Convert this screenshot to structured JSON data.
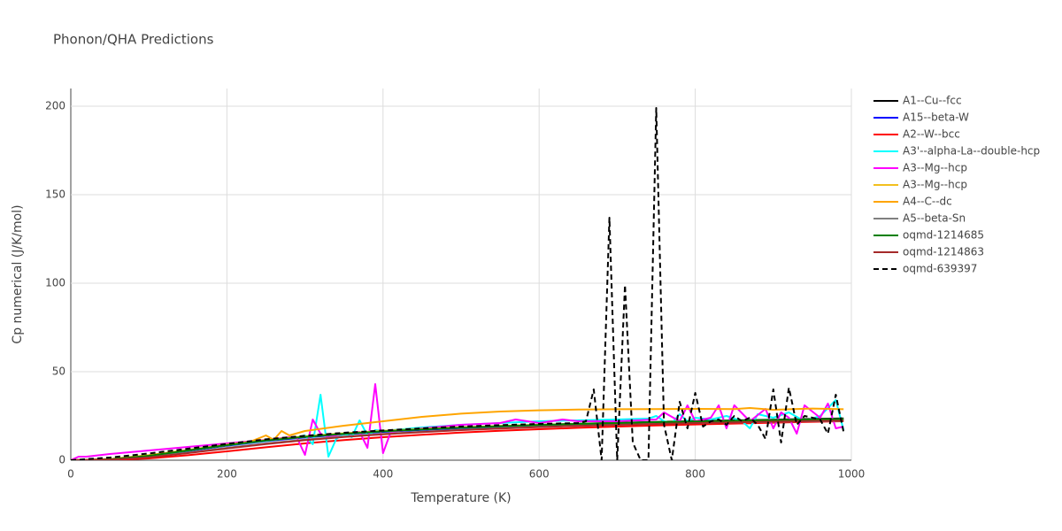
{
  "chart_data": {
    "type": "line",
    "title": "Phonon/QHA Predictions",
    "x_label": "Temperature (K)",
    "y_label": "Cp numerical (J/K/mol)",
    "xlim": [
      0,
      1000
    ],
    "ylim": [
      0,
      210
    ],
    "xticks": [
      0,
      200,
      400,
      600,
      800,
      1000
    ],
    "yticks": [
      0,
      50,
      100,
      150,
      200
    ],
    "grid": true,
    "x": [
      0,
      50,
      100,
      150,
      200,
      250,
      300,
      350,
      400,
      450,
      500,
      550,
      600,
      650,
      700,
      750,
      800,
      850,
      900,
      950,
      990
    ],
    "series": [
      {
        "name": "A1--Cu--fcc",
        "color": "#000000",
        "values": [
          0,
          0.5,
          2.6,
          5.6,
          8.6,
          11.2,
          13.3,
          15,
          16.4,
          17.5,
          18.5,
          19.3,
          20,
          20.6,
          21.1,
          21.6,
          22.1,
          22.5,
          22.9,
          23.3,
          23.6
        ]
      },
      {
        "name": "A15--beta-W",
        "color": "#0000ff",
        "values": [
          0,
          0.4,
          2.3,
          5.2,
          8.2,
          10.8,
          12.9,
          14.6,
          16,
          17.1,
          18.1,
          18.9,
          19.6,
          20.2,
          20.7,
          21.2,
          21.6,
          22,
          22.4,
          22.8,
          23.1
        ]
      },
      {
        "name": "A2--W--bcc",
        "color": "#ff0000",
        "values": [
          0,
          0.1,
          1,
          2.8,
          5,
          7.3,
          9.5,
          11.4,
          13,
          14.4,
          15.6,
          16.6,
          17.5,
          18.3,
          19,
          19.6,
          20.2,
          20.7,
          21.2,
          21.7,
          22
        ]
      },
      {
        "name": "A3'--alpha-La--double-hcp",
        "color": "#00ffff",
        "x": [
          0,
          50,
          100,
          150,
          200,
          250,
          280,
          290,
          300,
          310,
          320,
          330,
          340,
          350,
          360,
          370,
          380,
          390,
          400,
          450,
          500,
          550,
          600,
          650,
          700,
          740,
          750,
          760,
          770,
          780,
          790,
          800,
          820,
          840,
          860,
          870,
          880,
          900,
          920,
          940,
          960,
          980,
          990
        ],
        "values": [
          0,
          0.5,
          2.5,
          5.5,
          8.5,
          11,
          12.5,
          13,
          14,
          9,
          37,
          2,
          12,
          15,
          13,
          22.5,
          14,
          17,
          16.5,
          18.5,
          20,
          21,
          22,
          22.5,
          23,
          23.5,
          25,
          22,
          21,
          26,
          22,
          24,
          23,
          25,
          22,
          18,
          26,
          24,
          27,
          22,
          25,
          34,
          17
        ]
      },
      {
        "name": "A3--Mg--hcp",
        "color": "#ff00ff",
        "x": [
          0,
          10,
          20,
          50,
          100,
          150,
          200,
          250,
          280,
          290,
          300,
          310,
          320,
          330,
          350,
          370,
          380,
          390,
          400,
          410,
          450,
          500,
          550,
          570,
          600,
          630,
          650,
          700,
          750,
          760,
          780,
          790,
          800,
          820,
          830,
          840,
          850,
          870,
          890,
          900,
          910,
          920,
          930,
          940,
          960,
          970,
          980,
          990
        ],
        "values": [
          0,
          2,
          2,
          3.5,
          5.5,
          7.5,
          9.5,
          11.5,
          13,
          12.5,
          3,
          23,
          15,
          13,
          15,
          16,
          7,
          43,
          4,
          16,
          18,
          20,
          21,
          23,
          21,
          23,
          22,
          22,
          23,
          27,
          22,
          31,
          22,
          24,
          31,
          18,
          31,
          22,
          29,
          18,
          27,
          24,
          15,
          31,
          24,
          32,
          18,
          19
        ]
      },
      {
        "name": "A3--Mg--hcp",
        "color": "#f2c01e",
        "values": [
          0,
          0.6,
          2.8,
          5.8,
          8.8,
          11.4,
          13.5,
          15.2,
          16.6,
          17.7,
          18.6,
          19.4,
          20,
          20.5,
          21,
          21.4,
          21.8,
          22.2,
          22.5,
          22.9,
          23.2
        ]
      },
      {
        "name": "A4--C--dc",
        "color": "#ffa500",
        "x": [
          0,
          50,
          100,
          150,
          200,
          230,
          250,
          260,
          270,
          280,
          300,
          350,
          400,
          450,
          500,
          550,
          600,
          650,
          700,
          750,
          800,
          850,
          870,
          900,
          950,
          990
        ],
        "values": [
          0,
          0.6,
          2.8,
          5.6,
          8.5,
          10.5,
          14,
          11.5,
          16.5,
          14,
          16.5,
          19.5,
          22,
          24.5,
          26.3,
          27.5,
          28.2,
          28.6,
          28.8,
          28.9,
          29,
          28.9,
          29.5,
          28.5,
          29.2,
          28.8
        ]
      },
      {
        "name": "A5--beta-Sn",
        "color": "#808080",
        "values": [
          0,
          0.3,
          1.8,
          4.3,
          7,
          9.5,
          11.6,
          13.4,
          14.9,
          16.1,
          17.2,
          18.1,
          18.9,
          19.5,
          20.1,
          20.6,
          21,
          21.4,
          21.7,
          22,
          22.2
        ]
      },
      {
        "name": "oqmd-1214685",
        "color": "#008000",
        "values": [
          0,
          0.5,
          2.5,
          5.5,
          8.5,
          11.1,
          13.2,
          14.9,
          16.3,
          17.4,
          18.4,
          19.2,
          19.9,
          20.5,
          21,
          21.5,
          21.9,
          22.3,
          22.7,
          23,
          23.3
        ]
      },
      {
        "name": "oqmd-1214863",
        "color": "#a52a2a",
        "values": [
          0,
          0.3,
          1.6,
          4,
          6.6,
          9.1,
          11.3,
          13.1,
          14.6,
          15.9,
          17,
          17.9,
          18.7,
          19.4,
          20,
          20.5,
          21,
          21.4,
          21.8,
          22.1,
          22.4
        ]
      },
      {
        "name": "oqmd-639397",
        "color": "#000000",
        "dash": "dash",
        "x": [
          0,
          50,
          100,
          150,
          200,
          250,
          300,
          350,
          400,
          450,
          500,
          550,
          600,
          650,
          660,
          670,
          680,
          690,
          700,
          710,
          720,
          730,
          740,
          750,
          760,
          770,
          780,
          790,
          800,
          810,
          820,
          830,
          840,
          850,
          860,
          870,
          880,
          890,
          900,
          910,
          920,
          930,
          940,
          950,
          960,
          970,
          980,
          990
        ],
        "values": [
          0,
          1.5,
          3.8,
          6.5,
          9.2,
          11.8,
          13.8,
          15.5,
          16.8,
          18,
          19,
          19.8,
          20.5,
          21,
          22,
          40,
          0,
          137,
          0,
          99,
          10,
          0,
          0,
          199,
          20,
          0,
          33,
          18,
          38,
          19,
          22,
          23,
          20,
          25,
          22,
          24,
          20,
          12,
          40,
          10,
          41,
          20,
          25,
          24,
          23,
          15,
          37,
          16
        ]
      }
    ]
  }
}
